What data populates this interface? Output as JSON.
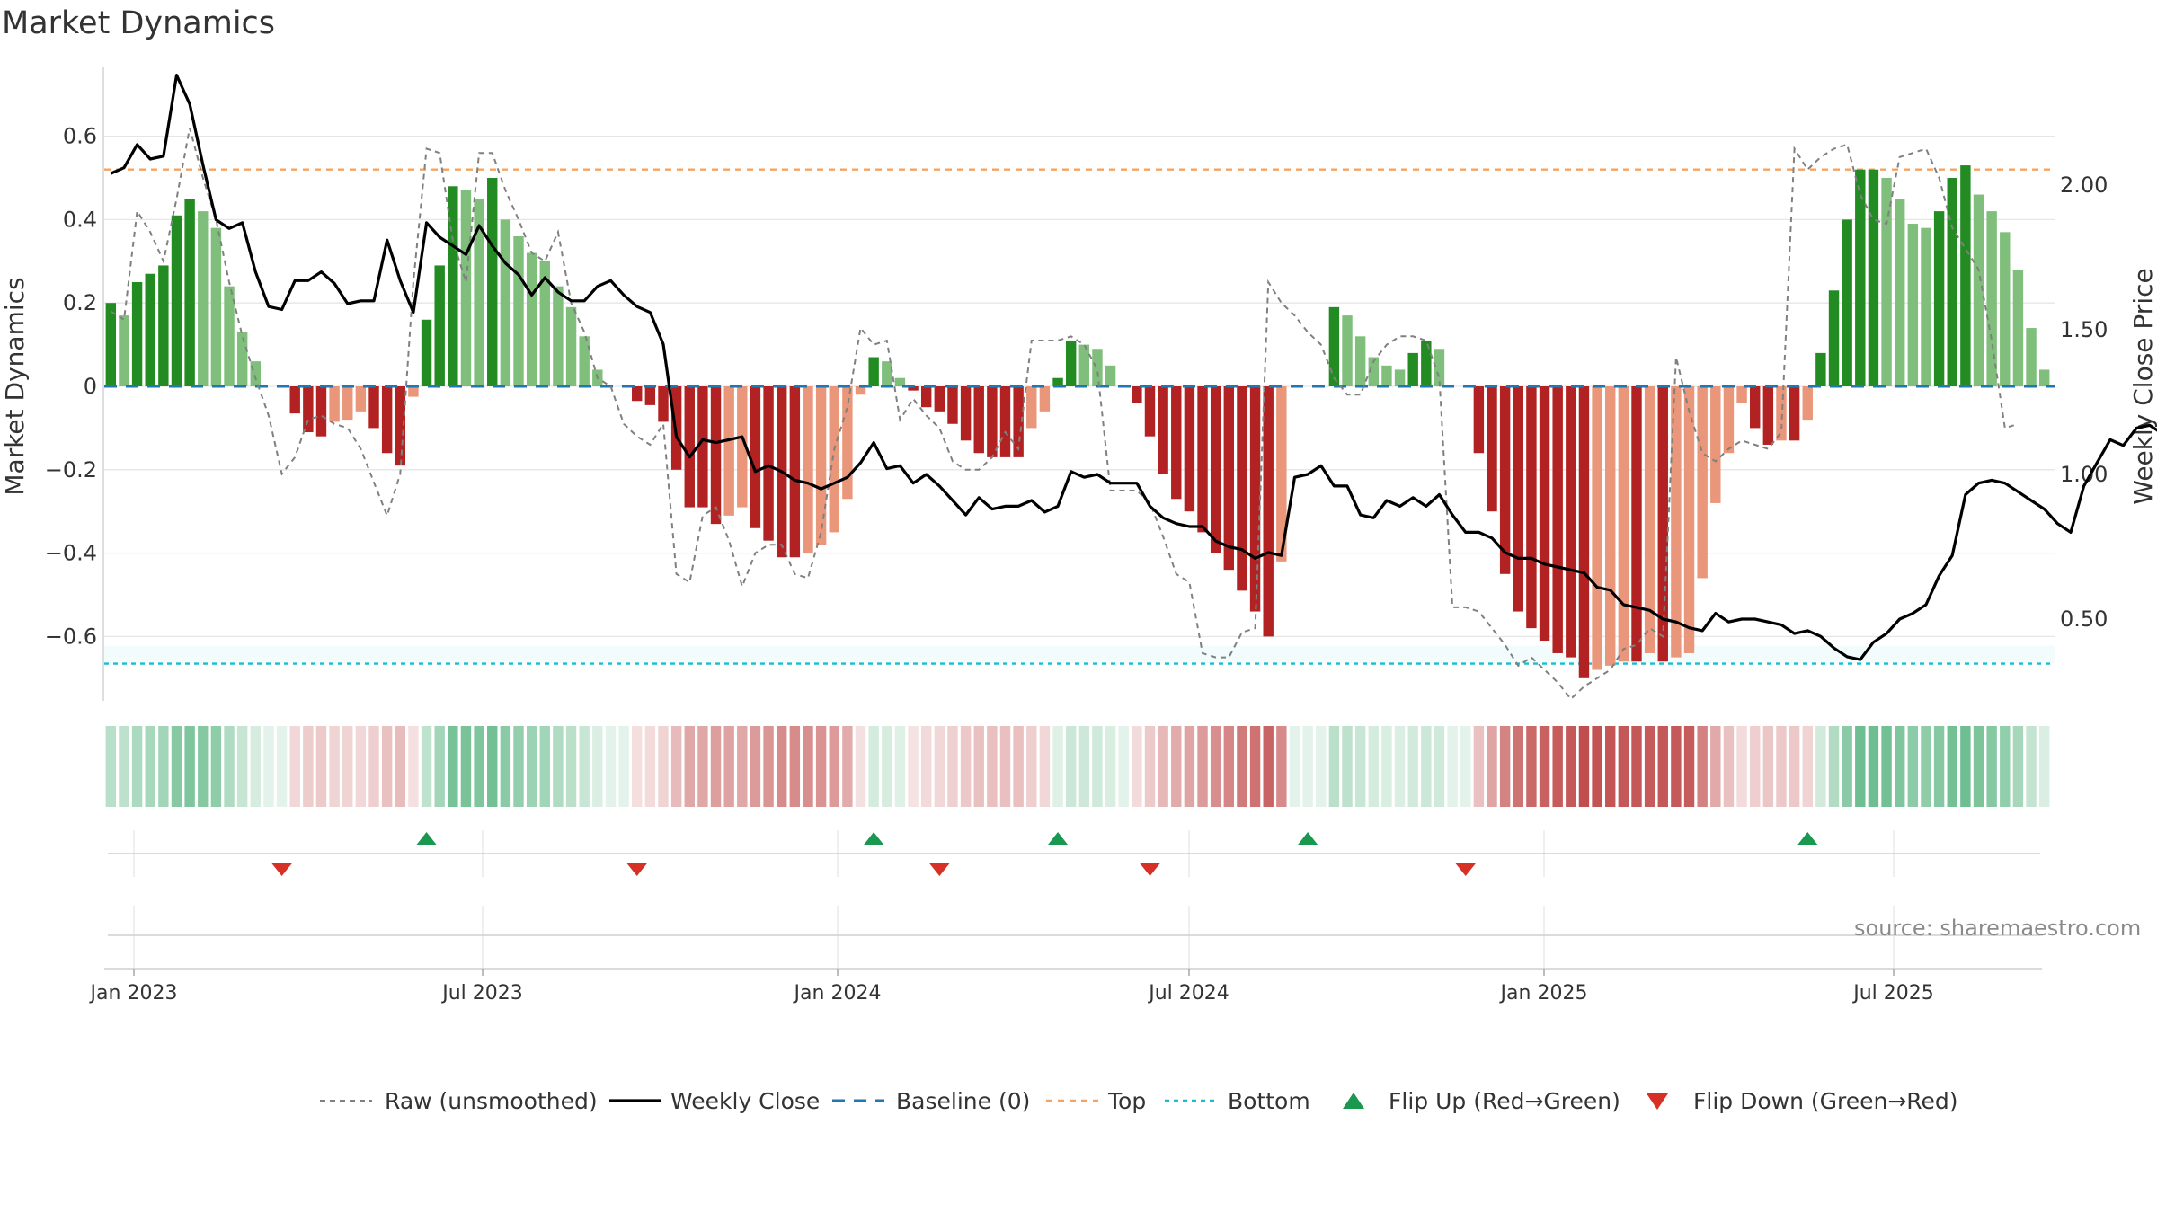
{
  "title": "Market Dynamics",
  "source": "source: sharemaestro.com",
  "colors": {
    "strong_green": "#228B22",
    "light_green": "#7fbf7b",
    "strong_red": "#b22222",
    "light_red": "#e9967a",
    "close": "#000000",
    "raw": "#808080",
    "baseline": "#1f77b4",
    "top": "#f4a460",
    "bottom": "#17becf",
    "flip_up": "#1a9850",
    "flip_down": "#d73027"
  },
  "chart_data": {
    "type": "bar",
    "x_ticks": [
      "Jan 2023",
      "Jul 2023",
      "Jan 2024",
      "Jul 2024",
      "Jan 2025",
      "Jul 2025"
    ],
    "y_left": {
      "label": "Market Dynamics",
      "ticks": [
        "0.6",
        "0.4",
        "0.2",
        "0",
        "−0.2",
        "−0.4",
        "−0.6"
      ],
      "range": [
        -0.75,
        0.75
      ]
    },
    "y_right": {
      "label": "Weekly Close Price",
      "ticks": [
        "2.00",
        "1.50",
        "1.00",
        "0.50"
      ],
      "range": [
        0.15,
        2.35
      ]
    },
    "top_level": 0.52,
    "bottom_level": -0.665,
    "dynamics": [
      0.2,
      0.17,
      0.25,
      0.27,
      0.29,
      0.41,
      0.45,
      0.42,
      0.38,
      0.24,
      0.13,
      0.06,
      0.0,
      0.0,
      -0.065,
      -0.11,
      -0.12,
      -0.085,
      -0.08,
      -0.06,
      -0.1,
      -0.16,
      -0.19,
      -0.025,
      0.16,
      0.29,
      0.48,
      0.47,
      0.45,
      0.5,
      0.4,
      0.36,
      0.32,
      0.3,
      0.24,
      0.19,
      0.12,
      0.04,
      0.0,
      0.0,
      -0.035,
      -0.045,
      -0.085,
      -0.2,
      -0.29,
      -0.29,
      -0.33,
      -0.31,
      -0.29,
      -0.34,
      -0.37,
      -0.41,
      -0.41,
      -0.4,
      -0.38,
      -0.35,
      -0.27,
      -0.02,
      0.07,
      0.06,
      0.02,
      -0.01,
      -0.05,
      -0.06,
      -0.09,
      -0.13,
      -0.16,
      -0.17,
      -0.17,
      -0.17,
      -0.1,
      -0.06,
      0.02,
      0.11,
      0.1,
      0.09,
      0.05,
      0.0,
      -0.04,
      -0.12,
      -0.21,
      -0.27,
      -0.3,
      -0.35,
      -0.4,
      -0.44,
      -0.49,
      -0.54,
      -0.6,
      -0.42,
      0.0,
      0.0,
      0.0,
      0.19,
      0.17,
      0.12,
      0.07,
      0.05,
      0.04,
      0.08,
      0.11,
      0.09,
      0.0,
      0.0,
      -0.16,
      -0.3,
      -0.45,
      -0.54,
      -0.58,
      -0.61,
      -0.64,
      -0.65,
      -0.7,
      -0.68,
      -0.67,
      -0.66,
      -0.66,
      -0.64,
      -0.66,
      -0.65,
      -0.64,
      -0.46,
      -0.28,
      -0.16,
      -0.04,
      -0.1,
      -0.14,
      -0.13,
      -0.13,
      -0.08,
      0.08,
      0.23,
      0.4,
      0.52,
      0.52,
      0.5,
      0.45,
      0.39,
      0.38,
      0.42,
      0.5,
      0.53,
      0.46,
      0.42,
      0.37,
      0.28,
      0.14,
      0.04
    ],
    "raw": [
      0.18,
      0.16,
      0.42,
      0.37,
      0.3,
      0.45,
      0.62,
      0.5,
      0.4,
      0.25,
      0.12,
      0.02,
      -0.07,
      -0.21,
      -0.17,
      -0.08,
      -0.07,
      -0.09,
      -0.1,
      -0.15,
      -0.23,
      -0.31,
      -0.21,
      0.25,
      0.57,
      0.56,
      0.35,
      0.25,
      0.56,
      0.56,
      0.47,
      0.4,
      0.32,
      0.3,
      0.37,
      0.2,
      0.13,
      0.02,
      0.0,
      -0.09,
      -0.12,
      -0.14,
      -0.09,
      -0.45,
      -0.47,
      -0.31,
      -0.29,
      -0.37,
      -0.48,
      -0.4,
      -0.38,
      -0.38,
      -0.45,
      -0.46,
      -0.35,
      -0.15,
      -0.05,
      0.14,
      0.1,
      0.11,
      -0.08,
      -0.03,
      -0.07,
      -0.1,
      -0.18,
      -0.2,
      -0.2,
      -0.17,
      -0.11,
      -0.15,
      0.11,
      0.11,
      0.11,
      0.12,
      0.1,
      0.04,
      -0.25,
      -0.25,
      -0.25,
      -0.28,
      -0.36,
      -0.45,
      -0.47,
      -0.64,
      -0.65,
      -0.65,
      -0.59,
      -0.58,
      0.25,
      0.2,
      0.17,
      0.13,
      0.1,
      0.02,
      -0.02,
      -0.02,
      0.06,
      0.1,
      0.12,
      0.12,
      0.11,
      0.02,
      -0.53,
      -0.53,
      -0.54,
      -0.58,
      -0.62,
      -0.67,
      -0.65,
      -0.68,
      -0.71,
      -0.75,
      -0.72,
      -0.7,
      -0.68,
      -0.63,
      -0.62,
      -0.58,
      -0.6,
      0.07,
      -0.06,
      -0.16,
      -0.18,
      -0.15,
      -0.13,
      -0.14,
      -0.15,
      -0.11,
      0.57,
      0.52,
      0.55,
      0.57,
      0.58,
      0.46,
      0.4,
      0.39,
      0.55,
      0.56,
      0.57,
      0.5,
      0.38,
      0.33,
      0.28,
      0.11,
      -0.1,
      -0.09
    ],
    "close": [
      2.04,
      2.06,
      2.14,
      2.09,
      2.1,
      2.38,
      2.28,
      2.07,
      1.88,
      1.85,
      1.87,
      1.7,
      1.58,
      1.57,
      1.67,
      1.67,
      1.7,
      1.66,
      1.59,
      1.6,
      1.6,
      1.81,
      1.67,
      1.56,
      1.87,
      1.82,
      1.79,
      1.76,
      1.86,
      1.79,
      1.73,
      1.69,
      1.62,
      1.68,
      1.63,
      1.6,
      1.6,
      1.65,
      1.67,
      1.62,
      1.58,
      1.56,
      1.45,
      1.13,
      1.06,
      1.12,
      1.11,
      1.12,
      1.13,
      1.01,
      1.03,
      1.01,
      0.98,
      0.97,
      0.95,
      0.97,
      0.99,
      1.04,
      1.11,
      1.02,
      1.03,
      0.97,
      1.0,
      0.96,
      0.91,
      0.86,
      0.92,
      0.88,
      0.89,
      0.89,
      0.91,
      0.87,
      0.89,
      1.01,
      0.99,
      1.0,
      0.97,
      0.97,
      0.97,
      0.89,
      0.85,
      0.83,
      0.82,
      0.82,
      0.77,
      0.75,
      0.74,
      0.71,
      0.73,
      0.72,
      0.99,
      1.0,
      1.03,
      0.96,
      0.96,
      0.86,
      0.85,
      0.91,
      0.89,
      0.92,
      0.89,
      0.93,
      0.86,
      0.8,
      0.8,
      0.78,
      0.73,
      0.71,
      0.71,
      0.69,
      0.68,
      0.67,
      0.66,
      0.61,
      0.6,
      0.55,
      0.54,
      0.53,
      0.5,
      0.49,
      0.47,
      0.46,
      0.52,
      0.49,
      0.5,
      0.5,
      0.49,
      0.48,
      0.45,
      0.46,
      0.44,
      0.4,
      0.37,
      0.36,
      0.42,
      0.45,
      0.5,
      0.52,
      0.55,
      0.65,
      0.72,
      0.93,
      0.97,
      0.98,
      0.97,
      0.94,
      0.91,
      0.88,
      0.83,
      0.8,
      0.96,
      1.04,
      1.12,
      1.1,
      1.16,
      1.17,
      1.14,
      1.12,
      1.22,
      1.14,
      1.04,
      1.1
    ],
    "flip_up_weeks": [
      24,
      58,
      72,
      91,
      129
    ],
    "flip_down_weeks": [
      13,
      40,
      63,
      79,
      103
    ]
  },
  "legend": {
    "raw": "Raw (unsmoothed)",
    "close": "Weekly Close",
    "baseline": "Baseline (0)",
    "top": "Top",
    "bottom": "Bottom",
    "flip_up": "Flip Up (Red→Green)",
    "flip_down": "Flip Down (Green→Red)"
  }
}
